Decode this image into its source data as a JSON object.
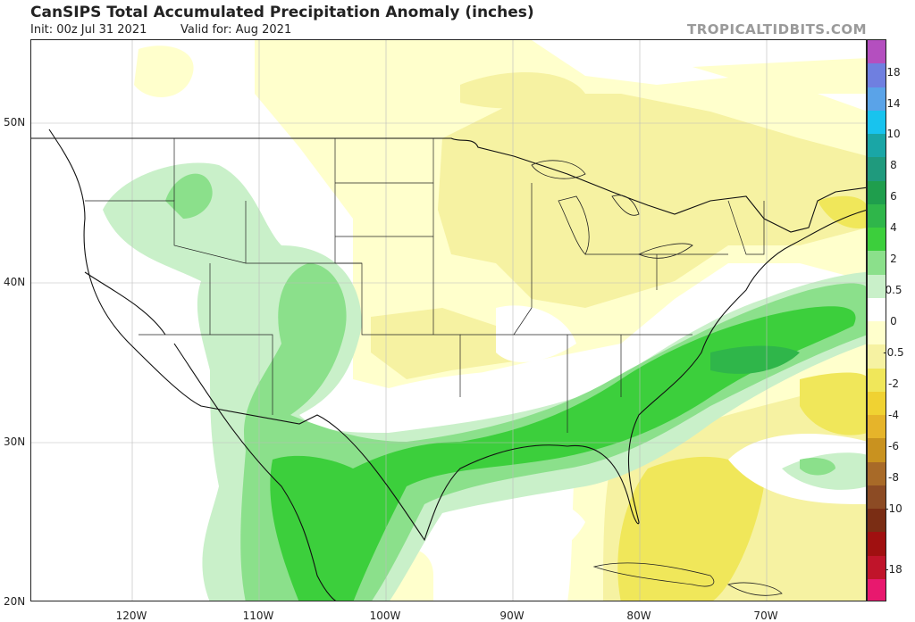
{
  "header": {
    "title": "CanSIPS Total Accumulated Precipitation Anomaly (inches)",
    "init": "Init: 00z Jul 31 2021",
    "valid": "Valid for: Aug 2021",
    "brand": "TROPICALTIDBITS.COM"
  },
  "lat_labels": [
    "50N",
    "40N",
    "30N",
    "20N"
  ],
  "lon_labels": [
    "120W",
    "110W",
    "100W",
    "90W",
    "80W",
    "70W"
  ],
  "colorbar": {
    "labels": [
      "18",
      "14",
      "10",
      "8",
      "6",
      "4",
      "2",
      "0.5",
      "0",
      "-0.5",
      "-2",
      "-4",
      "-6",
      "-8",
      "-10",
      "-18"
    ],
    "colors": [
      "#b44fbf",
      "#6f7fe0",
      "#5aa3e8",
      "#18c3ee",
      "#1aa6a6",
      "#1f9a7d",
      "#1f9e4d",
      "#2fb64a",
      "#3ccf3c",
      "#8be08b",
      "#c9f0c9",
      "#ffffff",
      "#ffffcc",
      "#f6f2a2",
      "#f0e75a",
      "#f0d232",
      "#e6b42a",
      "#c9921f",
      "#a86a28",
      "#8c4b24",
      "#7a2d14",
      "#a01010",
      "#c0142a",
      "#e8186e"
    ]
  }
}
